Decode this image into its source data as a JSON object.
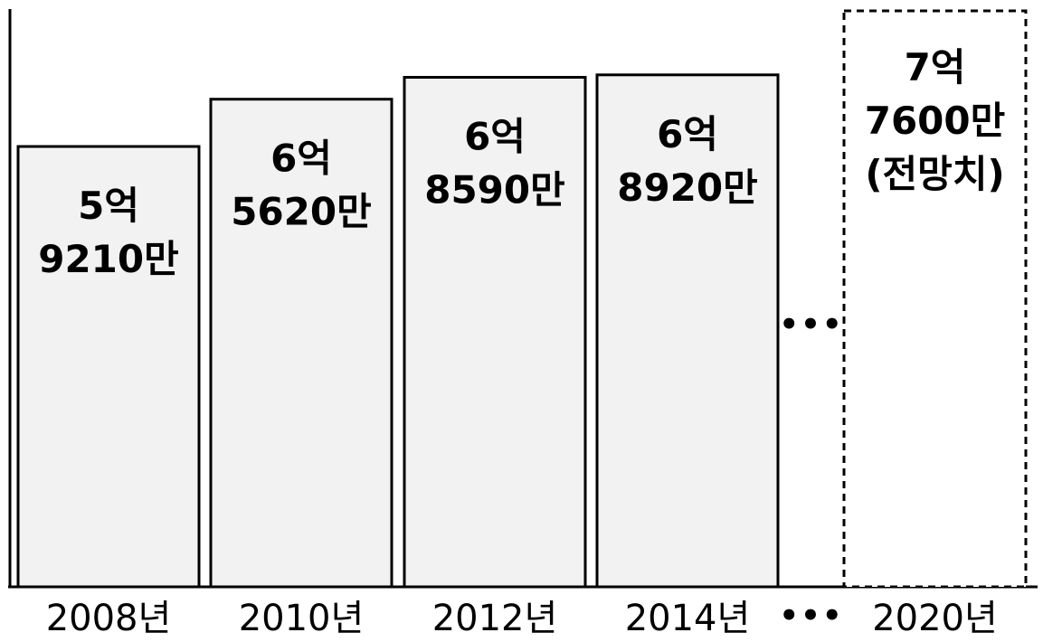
{
  "chart_data": {
    "type": "bar",
    "title": "",
    "xlabel": "",
    "ylabel": "",
    "grid": false,
    "legend": "none",
    "ylim": [
      0,
      80000
    ],
    "unit": "만",
    "categories": [
      "2008년",
      "2010년",
      "2012년",
      "2014년",
      "2020년"
    ],
    "values": [
      59210,
      65620,
      68590,
      68920,
      77600
    ],
    "value_labels": [
      [
        "5억",
        "9210만"
      ],
      [
        "6억",
        "5620만"
      ],
      [
        "6억",
        "8590만"
      ],
      [
        "6억",
        "8920만"
      ],
      [
        "7억",
        "7600만",
        "(전망치)"
      ]
    ],
    "projected": [
      false,
      false,
      false,
      false,
      true
    ],
    "gap_marker": "•••",
    "colors": {
      "bar_fill": "#f2f2f2",
      "bar_stroke": "#000000",
      "projected_fill": "#ffffff"
    }
  }
}
